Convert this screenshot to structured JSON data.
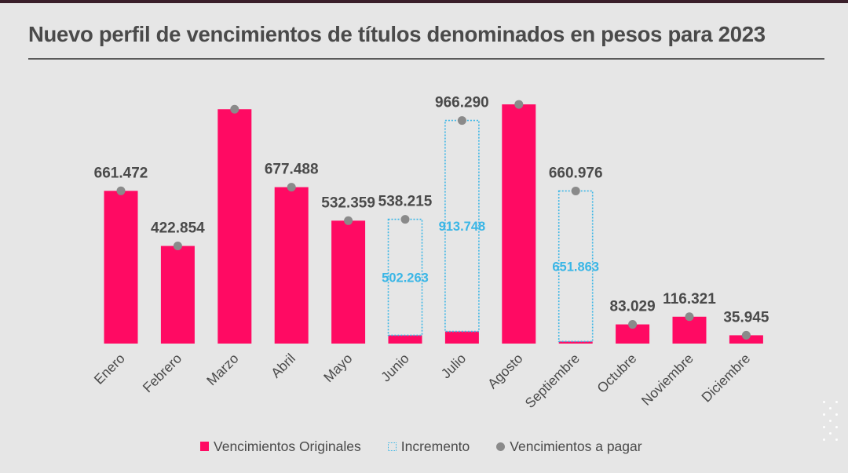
{
  "title": "Nuevo perfil de vencimientos de títulos denominados en pesos para 2023",
  "colors": {
    "original": "#ff0a63",
    "incremento": "#3ab6e6",
    "pagar": "#8a8a8a",
    "text": "#4a4a4a"
  },
  "legend": {
    "original": "Vencimientos Originales",
    "incremento": "Incremento",
    "pagar": "Vencimientos a pagar"
  },
  "chart_data": {
    "type": "bar",
    "title": "Nuevo perfil de vencimientos de títulos denominados en pesos para 2023",
    "categories": [
      "Enero",
      "Febrero",
      "Marzo",
      "Abril",
      "Mayo",
      "Junio",
      "Julio",
      "Agosto",
      "Septiembre",
      "Octubre",
      "Noviembre",
      "Diciembre"
    ],
    "series": [
      {
        "name": "Vencimientos Originales",
        "values": [
          661472,
          422854,
          1015000,
          677488,
          532359,
          35952,
          52542,
          1036000,
          9113,
          83029,
          116321,
          35945
        ]
      },
      {
        "name": "Incremento",
        "values": [
          0,
          0,
          0,
          0,
          0,
          502263,
          913748,
          0,
          651863,
          0,
          0,
          0
        ]
      },
      {
        "name": "Vencimientos a pagar",
        "values": [
          661472,
          422854,
          1015000,
          677488,
          532359,
          538215,
          966290,
          1036000,
          660976,
          83029,
          116321,
          35945
        ]
      }
    ],
    "total_labels": [
      "661.472",
      "422.854",
      "",
      "677.488",
      "532.359",
      "538.215",
      "966.290",
      "",
      "660.976",
      "83.029",
      "116.321",
      "35.945"
    ],
    "increment_labels": [
      "",
      "",
      "",
      "",
      "",
      "502.263",
      "913.748",
      "",
      "651.863",
      "",
      "",
      ""
    ],
    "ylim": [
      0,
      1060000
    ],
    "grid": false,
    "legend_position": "bottom"
  }
}
